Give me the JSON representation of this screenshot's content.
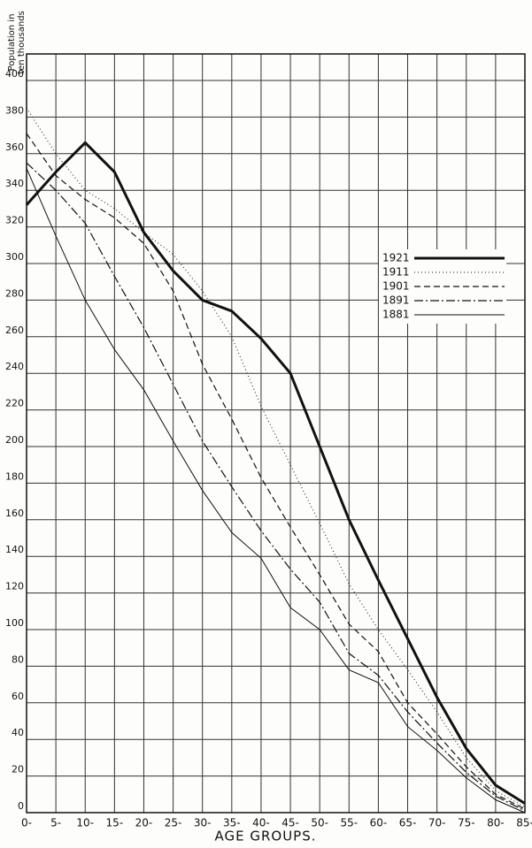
{
  "chart_data": {
    "type": "line",
    "y_label": [
      "Population in",
      "ten thousands"
    ],
    "x_label": "AGE GROUPS.",
    "categories": [
      "0-",
      "5-",
      "10-",
      "15-",
      "20-",
      "25-",
      "30-",
      "35-",
      "40-",
      "45-",
      "50-",
      "55-",
      "60-",
      "65-",
      "70-",
      "75-",
      "80-",
      "85-"
    ],
    "series": [
      {
        "name": "1921",
        "color": "#111111",
        "width": 3,
        "dash": "",
        "values": [
          332,
          350,
          366,
          350,
          317,
          296,
          280,
          274,
          259,
          240,
          200,
          160,
          127,
          95,
          63,
          35,
          15,
          5
        ]
      },
      {
        "name": "1911",
        "color": "#111111",
        "width": 1,
        "dash": "1 3",
        "values": [
          385,
          360,
          340,
          330,
          317,
          305,
          285,
          260,
          222,
          190,
          158,
          125,
          100,
          78,
          55,
          30,
          12,
          3
        ]
      },
      {
        "name": "1901",
        "color": "#111111",
        "width": 1.2,
        "dash": "7 4",
        "values": [
          371,
          348,
          335,
          325,
          311,
          285,
          245,
          215,
          183,
          156,
          130,
          103,
          88,
          60,
          43,
          25,
          10,
          2
        ]
      },
      {
        "name": "1891",
        "color": "#111111",
        "width": 1.2,
        "dash": "10 3 2 3",
        "values": [
          355,
          340,
          322,
          293,
          265,
          234,
          203,
          178,
          154,
          133,
          115,
          87,
          75,
          55,
          38,
          22,
          9,
          1
        ]
      },
      {
        "name": "1881",
        "color": "#111111",
        "width": 1,
        "dash": "",
        "values": [
          352,
          315,
          280,
          253,
          231,
          203,
          176,
          153,
          139,
          112,
          100,
          78,
          71,
          47,
          34,
          19,
          7,
          0
        ]
      }
    ],
    "ylim": [
      0,
      400
    ],
    "yticks": [
      0,
      20,
      40,
      60,
      80,
      100,
      120,
      140,
      160,
      180,
      200,
      220,
      240,
      260,
      280,
      300,
      320,
      340,
      360,
      380,
      400
    ],
    "grid": true
  }
}
